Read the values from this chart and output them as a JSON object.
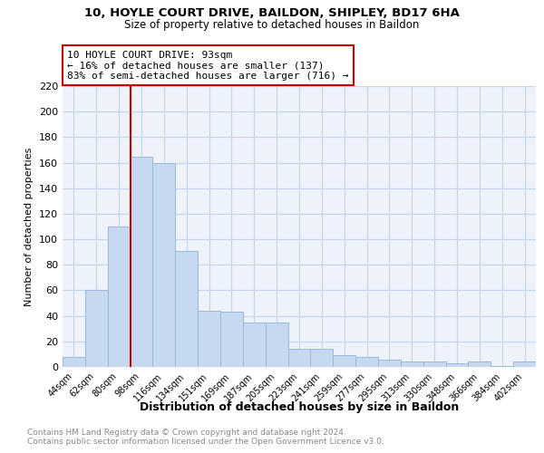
{
  "title_line1": "10, HOYLE COURT DRIVE, BAILDON, SHIPLEY, BD17 6HA",
  "title_line2": "Size of property relative to detached houses in Baildon",
  "xlabel": "Distribution of detached houses by size in Baildon",
  "ylabel": "Number of detached properties",
  "categories": [
    "44sqm",
    "62sqm",
    "80sqm",
    "98sqm",
    "116sqm",
    "134sqm",
    "151sqm",
    "169sqm",
    "187sqm",
    "205sqm",
    "223sqm",
    "241sqm",
    "259sqm",
    "277sqm",
    "295sqm",
    "313sqm",
    "330sqm",
    "348sqm",
    "366sqm",
    "384sqm",
    "402sqm"
  ],
  "values": [
    8,
    60,
    110,
    165,
    160,
    91,
    44,
    43,
    35,
    35,
    14,
    14,
    9,
    8,
    6,
    4,
    4,
    3,
    4,
    1,
    4
  ],
  "bar_color": "#c6d9f1",
  "bar_edge_color": "#9ab8d8",
  "grid_color": "#c8d4e8",
  "vline_color": "#cc0000",
  "annotation_text": "10 HOYLE COURT DRIVE: 93sqm\n← 16% of detached houses are smaller (137)\n83% of semi-detached houses are larger (716) →",
  "annotation_box_color": "#ffffff",
  "annotation_box_edge": "#cc0000",
  "ylim": [
    0,
    220
  ],
  "yticks": [
    0,
    20,
    40,
    60,
    80,
    100,
    120,
    140,
    160,
    180,
    200,
    220
  ],
  "footer_text": "Contains HM Land Registry data © Crown copyright and database right 2024.\nContains public sector information licensed under the Open Government Licence v3.0.",
  "bg_color": "#edf2fb"
}
